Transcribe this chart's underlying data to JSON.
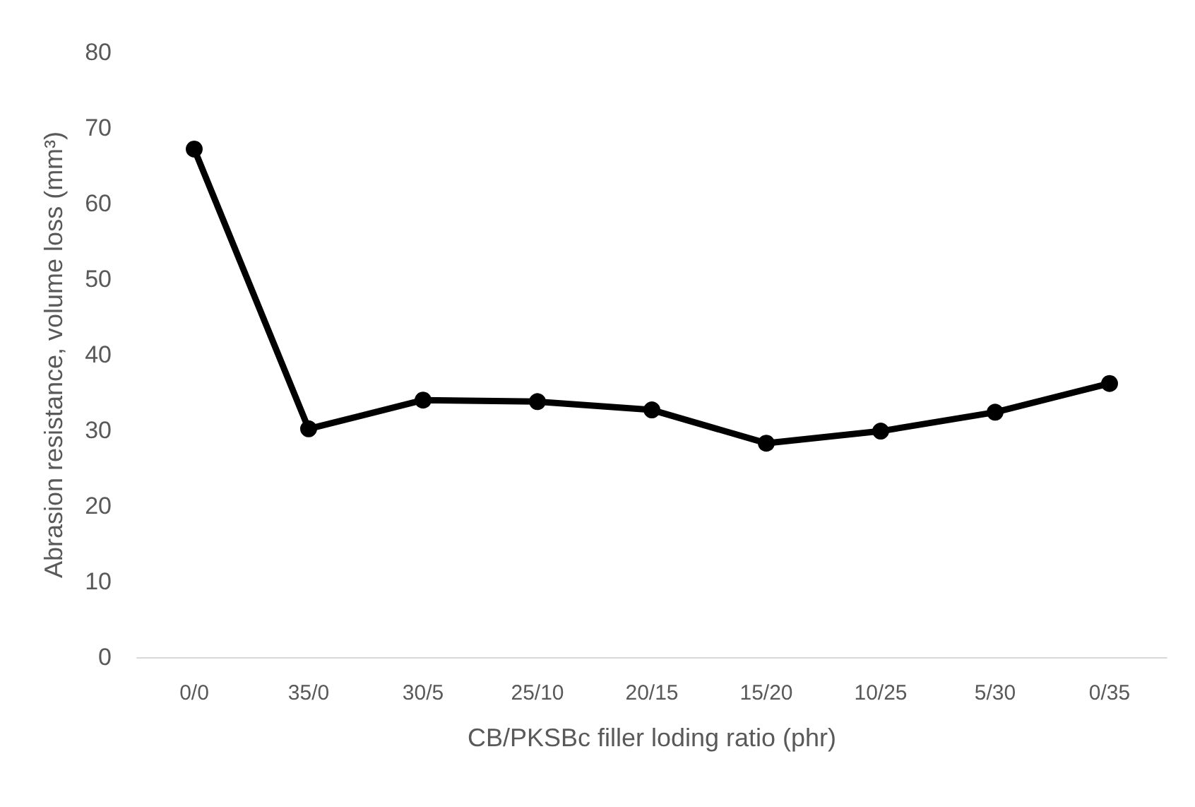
{
  "chart_data": {
    "type": "line",
    "xlabel": "CB/PKSBc filler loding ratio (phr)",
    "ylabel": "Abrasion resistance, volume loss (mm³)",
    "categories": [
      "0/0",
      "35/0",
      "30/5",
      "25/10",
      "20/15",
      "15/20",
      "10/25",
      "5/30",
      "0/35"
    ],
    "series": [
      {
        "color": "#000000",
        "values": [
          67.2,
          30.2,
          34.0,
          33.8,
          32.7,
          28.3,
          29.9,
          32.4,
          36.2
        ]
      }
    ],
    "ylim": [
      0,
      80
    ],
    "yticks": [
      0,
      10,
      20,
      30,
      40,
      50,
      60,
      70,
      80
    ],
    "grid": false,
    "marker": "circle",
    "line_style": "solid"
  }
}
